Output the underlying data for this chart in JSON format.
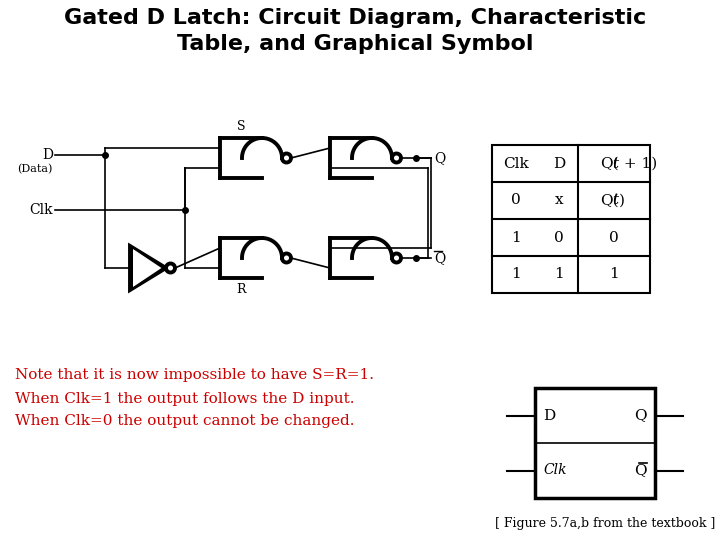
{
  "title_line1": "Gated D Latch: Circuit Diagram, Characteristic",
  "title_line2": "Table, and Graphical Symbol",
  "title_fontsize": 16,
  "bg_color": "#ffffff",
  "note_line1": "Note that it is now impossible to have S=R=1.",
  "note_line2": "When Clk=1 the output follows the D input.",
  "note_line3": "When Clk=0 the output cannot be changed.",
  "note_color": "#cc0000",
  "figure_ref": "[ Figure 5.7a,b from the textbook ]",
  "table_headers": [
    "Clk",
    "D",
    "Q(t+1)"
  ],
  "table_rows": [
    [
      "0",
      "x",
      "Q(t)"
    ],
    [
      "1",
      "0",
      "0"
    ],
    [
      "1",
      "1",
      "1"
    ]
  ]
}
